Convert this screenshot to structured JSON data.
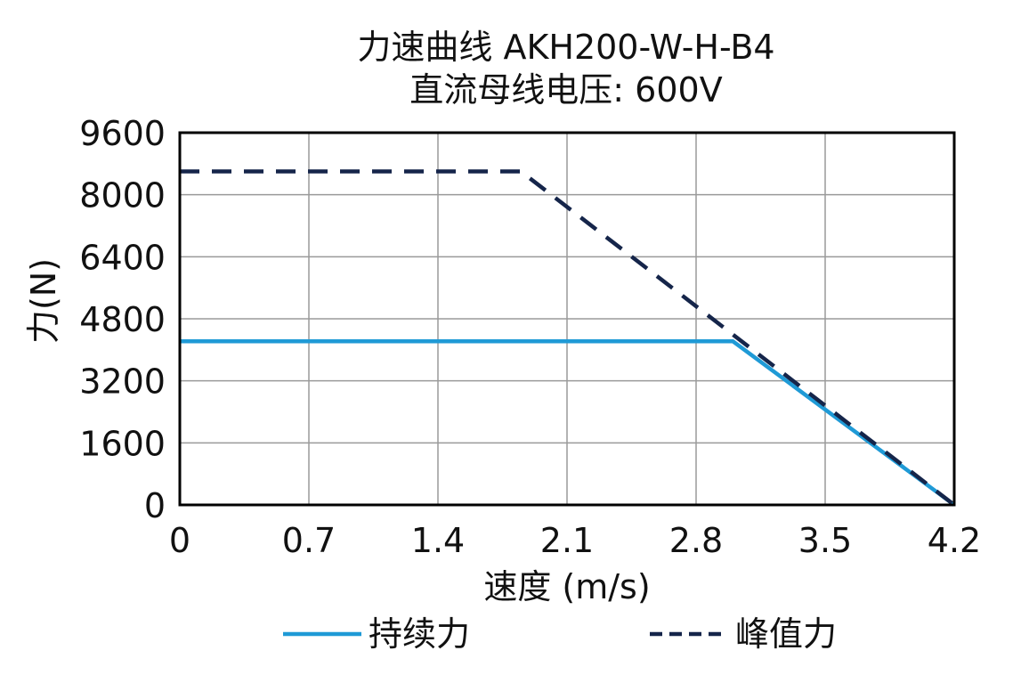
{
  "chart_data": {
    "type": "line",
    "title": "力速曲线 AKH200-W-H-B4",
    "subtitle": "直流母线电压: 600V",
    "xlabel": "速度 (m/s)",
    "ylabel": "力(N)",
    "xlim": [
      0,
      4.2
    ],
    "ylim": [
      0,
      9600
    ],
    "x_ticks": [
      "0",
      "0.7",
      "1.4",
      "2.1",
      "2.8",
      "3.5",
      "4.2"
    ],
    "y_ticks": [
      "9600",
      "8000",
      "6400",
      "4800",
      "3200",
      "1600",
      "0"
    ],
    "grid": true,
    "legend_position": "bottom",
    "series": [
      {
        "name": "持续力",
        "style": "solid",
        "color": "#1f9ad6",
        "points": [
          [
            0,
            4220
          ],
          [
            3.0,
            4220
          ],
          [
            4.2,
            0
          ]
        ]
      },
      {
        "name": "峰值力",
        "style": "dashed",
        "color": "#15254a",
        "points": [
          [
            0,
            8600
          ],
          [
            1.85,
            8600
          ],
          [
            4.2,
            0
          ]
        ]
      }
    ]
  }
}
